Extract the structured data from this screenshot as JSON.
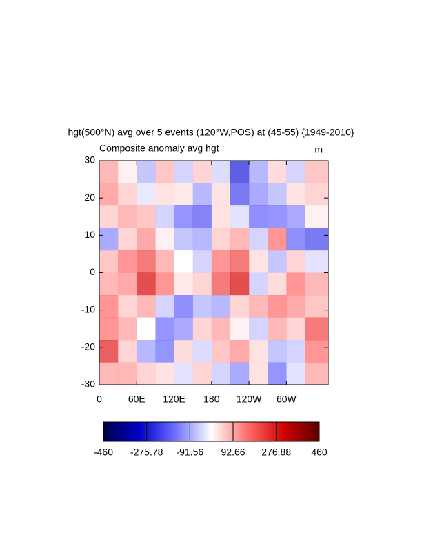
{
  "chart_data": {
    "type": "heatmap",
    "title": "hgt(500°N) avg over 5 events (120°W,POS) at (45-55) {1949-2010}",
    "subtitle": "Composite anomaly avg hgt",
    "units": "m",
    "x": [
      15,
      45,
      75,
      105,
      135,
      165,
      195,
      225,
      255,
      285,
      315,
      345
    ],
    "y": [
      27,
      21,
      15,
      9,
      3,
      -3,
      -9,
      -15,
      -21,
      -27
    ],
    "z": [
      [
        100,
        20,
        -80,
        80,
        -60,
        60,
        -50,
        -250,
        -100,
        50,
        -60,
        80
      ],
      [
        120,
        60,
        -30,
        40,
        30,
        -100,
        40,
        -200,
        -120,
        -80,
        40,
        60
      ],
      [
        60,
        100,
        80,
        -60,
        -150,
        -180,
        40,
        -40,
        -160,
        -150,
        -120,
        20
      ],
      [
        -120,
        60,
        120,
        20,
        -80,
        -100,
        60,
        100,
        -60,
        150,
        -160,
        -200
      ],
      [
        80,
        150,
        200,
        100,
        0,
        -60,
        150,
        200,
        40,
        -80,
        60,
        -40
      ],
      [
        100,
        120,
        280,
        150,
        30,
        60,
        200,
        280,
        -60,
        50,
        150,
        100
      ],
      [
        150,
        60,
        100,
        -60,
        -160,
        -80,
        -100,
        60,
        100,
        150,
        120,
        80
      ],
      [
        150,
        100,
        0,
        -150,
        -120,
        60,
        100,
        20,
        -60,
        100,
        60,
        200
      ],
      [
        250,
        60,
        -100,
        -150,
        50,
        -50,
        80,
        120,
        40,
        -80,
        -60,
        150
      ],
      [
        100,
        100,
        60,
        40,
        -40,
        60,
        -60,
        -120,
        40,
        -150,
        -40,
        100
      ]
    ],
    "xlim": [
      0,
      367
    ],
    "ylim": [
      -30,
      30
    ],
    "xticks": [
      0,
      {
        "value": 60,
        "label": "60E"
      },
      {
        "value": 120,
        "label": "120E"
      },
      180,
      {
        "value": 240,
        "label": "120W"
      },
      {
        "value": 300,
        "label": "60W"
      }
    ],
    "yticks": [
      -30,
      -20,
      -10,
      0,
      10,
      20,
      30
    ],
    "clim": [
      -460,
      460
    ],
    "colors": [
      "#00004a",
      "#0000c8",
      "#6e6eff",
      "#ffffff",
      "#ff6e6e",
      "#d20000",
      "#5a0000"
    ],
    "cticks": [
      -460,
      -275.78,
      -91.56,
      92.66,
      276.88,
      460
    ]
  }
}
